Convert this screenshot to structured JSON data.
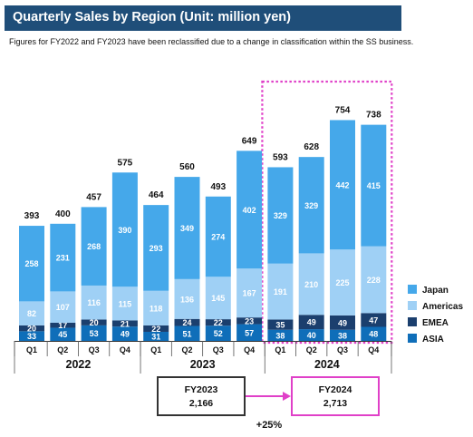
{
  "chart_data": {
    "type": "bar",
    "stacked": true,
    "title": "Quarterly Sales by Region (Unit: million yen)",
    "subtitle": "Figures for FY2022 and FY2023 have been reclassified due to a change in classification within the SS business.",
    "categories": [
      "Q1",
      "Q2",
      "Q3",
      "Q4",
      "Q1",
      "Q2",
      "Q3",
      "Q4",
      "Q1",
      "Q2",
      "Q3",
      "Q4"
    ],
    "groups": [
      {
        "label": "2022",
        "start": 0,
        "end": 3
      },
      {
        "label": "2023",
        "start": 4,
        "end": 7
      },
      {
        "label": "2024",
        "start": 8,
        "end": 11
      }
    ],
    "series": [
      {
        "name": "ASIA",
        "color": "#0f6eb9",
        "values": [
          33,
          45,
          53,
          49,
          31,
          51,
          52,
          57,
          38,
          40,
          38,
          48
        ]
      },
      {
        "name": "EMEA",
        "color": "#1b3f6e",
        "values": [
          20,
          17,
          20,
          21,
          22,
          24,
          22,
          23,
          35,
          49,
          49,
          47
        ]
      },
      {
        "name": "Americas",
        "color": "#9fd0f5",
        "values": [
          82,
          107,
          116,
          115,
          118,
          136,
          145,
          167,
          191,
          210,
          225,
          228
        ]
      },
      {
        "name": "Japan",
        "color": "#45a8ea",
        "values": [
          258,
          231,
          268,
          390,
          293,
          349,
          274,
          402,
          329,
          329,
          442,
          415
        ]
      }
    ],
    "totals": [
      393,
      400,
      457,
      575,
      464,
      560,
      493,
      649,
      593,
      628,
      754,
      738
    ],
    "legend_position": "right",
    "highlight": {
      "range_start": 8,
      "range_end": 11,
      "color": "#e040c8"
    }
  },
  "fy_boxes": [
    {
      "label": "FY2023",
      "value": "2,166",
      "border": "#333333"
    },
    {
      "label": "FY2024",
      "value": "2,713",
      "border": "#e040c8"
    }
  ],
  "growth_label": "+25%",
  "arrow_color": "#e040c8"
}
